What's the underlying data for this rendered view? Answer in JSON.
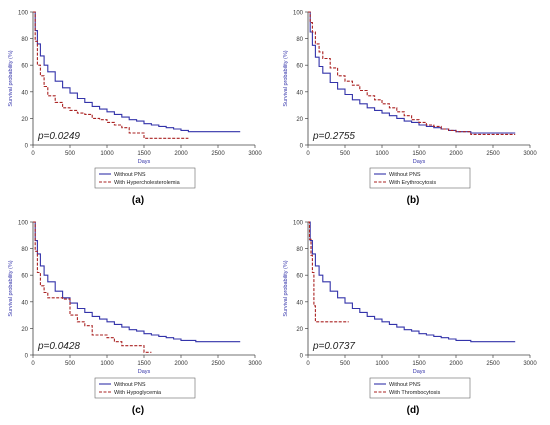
{
  "panels": [
    {
      "label": "(a)",
      "pvalue": "p=0.0249",
      "legend": [
        "Without PNS",
        "With Hypercholesterolemia"
      ]
    },
    {
      "label": "(b)",
      "pvalue": "p=0.2755",
      "legend": [
        "Without PNS",
        "With Erythrocytosis"
      ]
    },
    {
      "label": "(c)",
      "pvalue": "p=0.0428",
      "legend": [
        "Without PNS",
        "With Hypoglycemia"
      ]
    },
    {
      "label": "(d)",
      "pvalue": "p=0.0737",
      "legend": [
        "Without PNS",
        "With Thrombocytosis"
      ]
    }
  ],
  "colors": {
    "without": "#3333aa",
    "with": "#aa2222",
    "axis": "#444444"
  },
  "chart_data": [
    {
      "type": "line",
      "xlabel": "Days",
      "ylabel": "Survival probability (%)",
      "xlim": [
        0,
        3000
      ],
      "ylim": [
        0,
        100
      ],
      "xticks": [
        0,
        500,
        1000,
        1500,
        2000,
        2500,
        3000
      ],
      "yticks": [
        0,
        20,
        40,
        60,
        80,
        100
      ],
      "series": [
        {
          "name": "Without PNS",
          "style": "solid",
          "x": [
            0,
            30,
            60,
            100,
            150,
            200,
            300,
            400,
            500,
            600,
            700,
            800,
            900,
            1000,
            1100,
            1200,
            1300,
            1400,
            1500,
            1600,
            1700,
            1800,
            1900,
            2000,
            2100,
            2200,
            2500,
            2800
          ],
          "y": [
            100,
            86,
            76,
            67,
            60,
            55,
            48,
            43,
            39,
            35,
            32,
            29,
            27,
            25,
            23,
            21,
            19,
            18,
            16,
            15,
            14,
            13,
            12,
            11,
            10,
            10,
            10,
            10
          ]
        },
        {
          "name": "With Hypercholesterolemia",
          "style": "dashed",
          "x": [
            0,
            30,
            60,
            100,
            150,
            200,
            300,
            400,
            500,
            600,
            700,
            800,
            900,
            1000,
            1100,
            1200,
            1300,
            1400,
            1500,
            2000,
            2100
          ],
          "y": [
            100,
            78,
            60,
            52,
            44,
            37,
            32,
            28,
            26,
            24,
            23,
            20,
            19,
            17,
            15,
            13,
            9,
            9,
            5,
            5,
            5
          ]
        }
      ]
    },
    {
      "type": "line",
      "xlabel": "Days",
      "ylabel": "Survival probability (%)",
      "xlim": [
        0,
        3000
      ],
      "ylim": [
        0,
        100
      ],
      "xticks": [
        0,
        500,
        1000,
        1500,
        2000,
        2500,
        3000
      ],
      "yticks": [
        0,
        20,
        40,
        60,
        80,
        100
      ],
      "series": [
        {
          "name": "Without PNS",
          "style": "solid",
          "x": [
            0,
            30,
            60,
            100,
            150,
            200,
            300,
            400,
            500,
            600,
            700,
            800,
            900,
            1000,
            1100,
            1200,
            1300,
            1400,
            1500,
            1600,
            1700,
            1800,
            1900,
            2000,
            2200,
            2500,
            2800
          ],
          "y": [
            100,
            85,
            75,
            66,
            59,
            54,
            47,
            42,
            38,
            34,
            31,
            28,
            26,
            24,
            22,
            20,
            18,
            17,
            15,
            14,
            13,
            12,
            11,
            10,
            9,
            9,
            9
          ]
        },
        {
          "name": "With Erythrocytosis",
          "style": "dashed",
          "x": [
            0,
            30,
            60,
            100,
            150,
            200,
            300,
            400,
            500,
            600,
            700,
            800,
            900,
            1000,
            1100,
            1200,
            1300,
            1400,
            1500,
            1600,
            1700,
            1800,
            1900,
            2000,
            2200,
            2500,
            2800
          ],
          "y": [
            100,
            92,
            85,
            76,
            70,
            65,
            58,
            52,
            48,
            45,
            41,
            37,
            34,
            31,
            28,
            25,
            22,
            19,
            17,
            15,
            14,
            12,
            11,
            10,
            8,
            8,
            8
          ]
        }
      ]
    },
    {
      "type": "line",
      "xlabel": "Days",
      "ylabel": "Survival probability (%)",
      "xlim": [
        0,
        3000
      ],
      "ylim": [
        0,
        100
      ],
      "xticks": [
        0,
        500,
        1000,
        1500,
        2000,
        2500,
        3000
      ],
      "yticks": [
        0,
        20,
        40,
        60,
        80,
        100
      ],
      "series": [
        {
          "name": "Without PNS",
          "style": "solid",
          "x": [
            0,
            30,
            60,
            100,
            150,
            200,
            300,
            400,
            500,
            600,
            700,
            800,
            900,
            1000,
            1100,
            1200,
            1300,
            1400,
            1500,
            1600,
            1700,
            1800,
            1900,
            2000,
            2200,
            2500,
            2800
          ],
          "y": [
            100,
            86,
            76,
            67,
            60,
            55,
            48,
            43,
            39,
            35,
            32,
            29,
            27,
            25,
            23,
            21,
            19,
            18,
            16,
            15,
            14,
            13,
            12,
            11,
            10,
            10,
            10
          ]
        },
        {
          "name": "With Hypoglycemia",
          "style": "dashed",
          "x": [
            0,
            30,
            60,
            100,
            150,
            200,
            300,
            400,
            500,
            600,
            700,
            800,
            900,
            1000,
            1100,
            1200,
            1300,
            1400,
            1500,
            1600
          ],
          "y": [
            100,
            78,
            62,
            52,
            47,
            43,
            43,
            42,
            30,
            25,
            22,
            15,
            15,
            13,
            10,
            7,
            7,
            7,
            2,
            2
          ]
        }
      ]
    },
    {
      "type": "line",
      "xlabel": "Days",
      "ylabel": "Survival probability (%)",
      "xlim": [
        0,
        3000
      ],
      "ylim": [
        0,
        100
      ],
      "xticks": [
        0,
        500,
        1000,
        1500,
        2000,
        2500,
        3000
      ],
      "yticks": [
        0,
        20,
        40,
        60,
        80,
        100
      ],
      "series": [
        {
          "name": "Without PNS",
          "style": "solid",
          "x": [
            0,
            30,
            60,
            100,
            150,
            200,
            300,
            400,
            500,
            600,
            700,
            800,
            900,
            1000,
            1100,
            1200,
            1300,
            1400,
            1500,
            1600,
            1700,
            1800,
            1900,
            2000,
            2200,
            2500,
            2800
          ],
          "y": [
            100,
            86,
            76,
            67,
            60,
            55,
            48,
            43,
            39,
            35,
            32,
            29,
            27,
            25,
            23,
            21,
            19,
            18,
            16,
            15,
            14,
            13,
            12,
            11,
            10,
            10,
            10
          ]
        },
        {
          "name": "With Thrombocytosis",
          "style": "dashed",
          "x": [
            0,
            20,
            40,
            60,
            80,
            100,
            550
          ],
          "y": [
            100,
            87,
            75,
            62,
            37,
            25,
            25
          ]
        }
      ]
    }
  ]
}
